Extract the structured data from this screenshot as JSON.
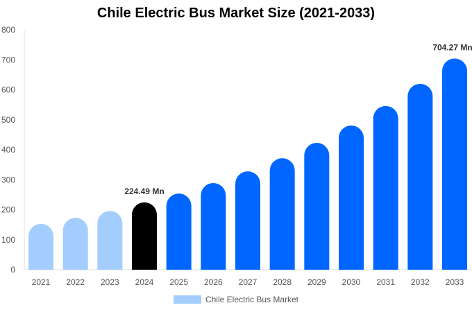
{
  "chart_data": {
    "type": "bar",
    "title": "Chile Electric Bus Market Size (2021-2033)",
    "categories": [
      "2021",
      "2022",
      "2023",
      "2024",
      "2025",
      "2026",
      "2027",
      "2028",
      "2029",
      "2030",
      "2031",
      "2032",
      "2033"
    ],
    "series": [
      {
        "name": "Chile Electric Bus Market",
        "values": [
          153,
          173,
          196,
          224.49,
          254,
          289,
          328,
          372,
          423,
          481,
          546,
          620,
          704.27
        ]
      }
    ],
    "data_labels": {
      "3": "224.49 Mn",
      "12": "704.27 Mn"
    },
    "ylim": [
      0,
      800
    ],
    "yticks": [
      0,
      100,
      200,
      300,
      400,
      500,
      600,
      700,
      800
    ],
    "grid": false,
    "legend_position": "bottom",
    "colors": {
      "historical": "#a3cdfd",
      "base_year": "#000000",
      "forecast": "#0066ff",
      "legend": "#a3cdfd"
    }
  }
}
